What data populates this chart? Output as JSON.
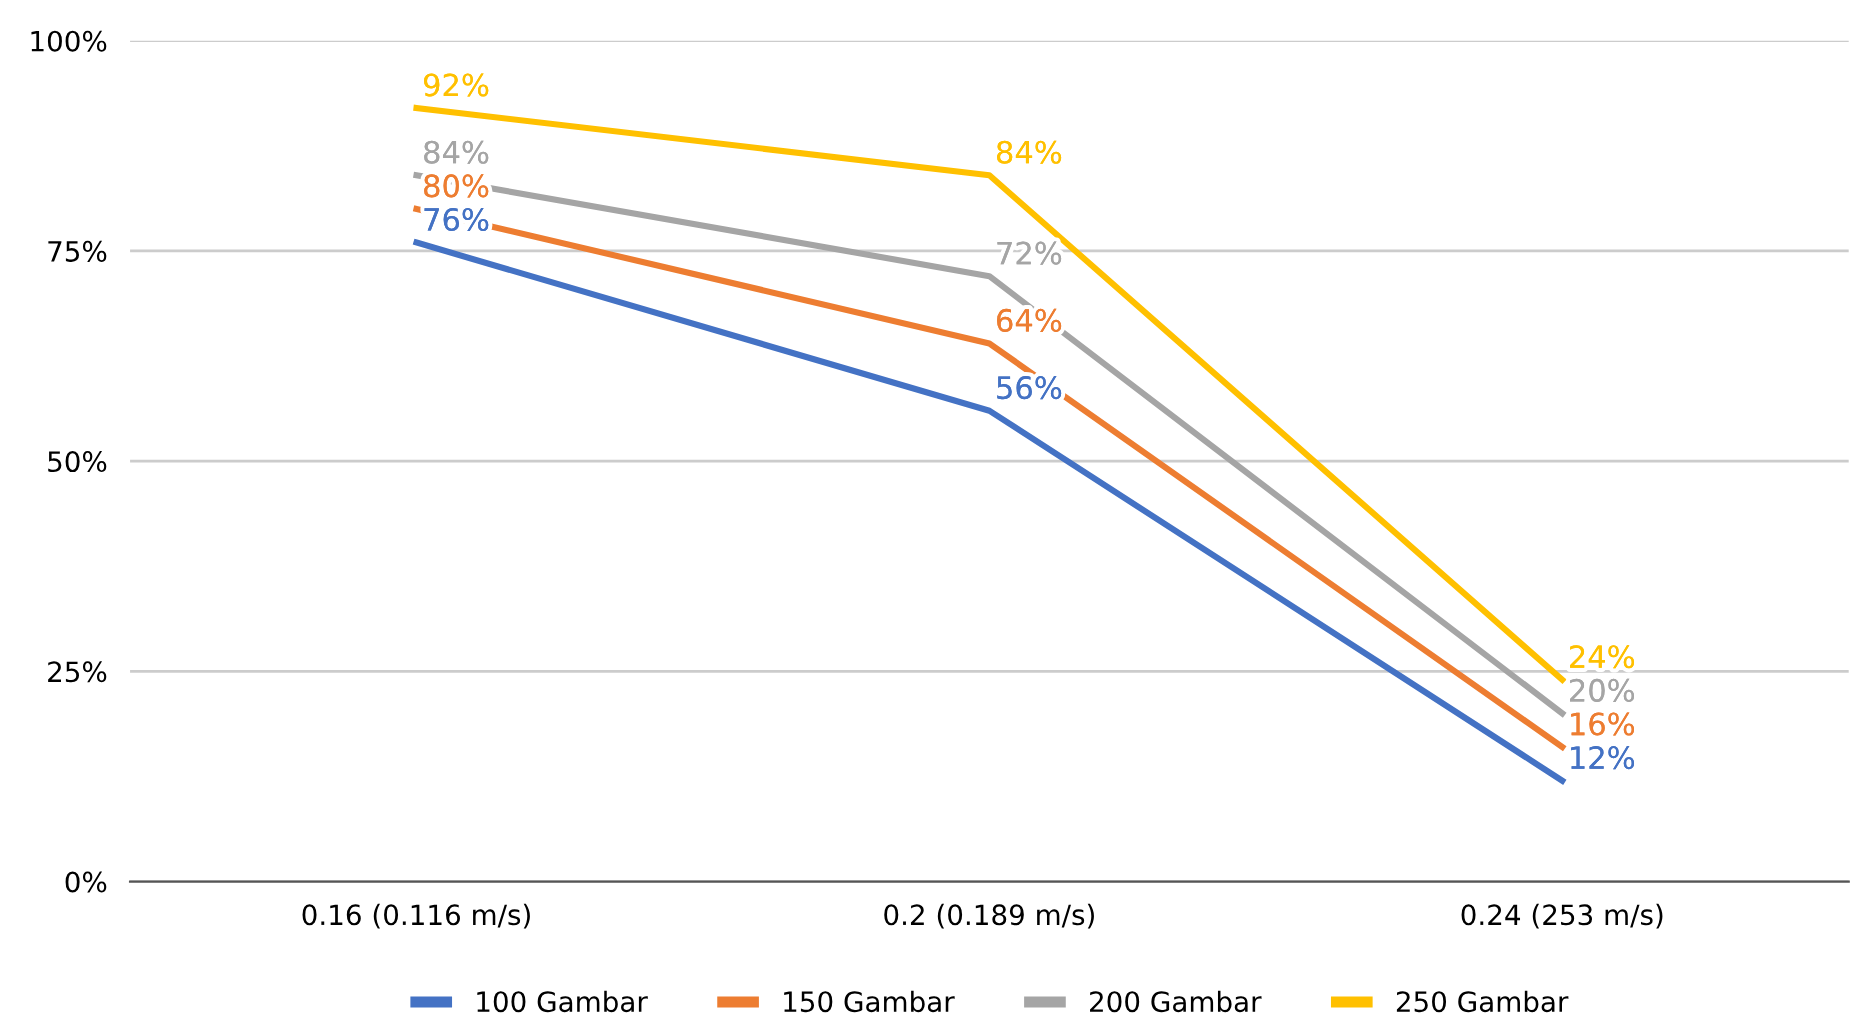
{
  "chart_data": {
    "type": "line",
    "categories": [
      "0.16 (0.116 m/s)",
      "0.2 (0.189 m/s)",
      "0.24 (253 m/s)"
    ],
    "series": [
      {
        "name": "100 Gambar",
        "color": "#4472c4",
        "values": [
          76,
          56,
          12
        ],
        "value_labels": [
          "76%",
          "56%",
          "12%"
        ]
      },
      {
        "name": "150 Gambar",
        "color": "#ed7d31",
        "values": [
          80,
          64,
          16
        ],
        "value_labels": [
          "80%",
          "64%",
          "16%"
        ]
      },
      {
        "name": "200 Gambar",
        "color": "#a5a5a5",
        "values": [
          84,
          72,
          20
        ],
        "value_labels": [
          "84%",
          "72%",
          "20%"
        ]
      },
      {
        "name": "250 Gambar",
        "color": "#ffc000",
        "values": [
          92,
          84,
          24
        ],
        "value_labels": [
          "92%",
          "84%",
          "24%"
        ]
      }
    ],
    "ylim": [
      0,
      100
    ],
    "yticks": [
      {
        "value": 0,
        "label": "0%"
      },
      {
        "value": 25,
        "label": "25%"
      },
      {
        "value": 50,
        "label": "50%"
      },
      {
        "value": 75,
        "label": "75%"
      },
      {
        "value": 100,
        "label": "100%"
      }
    ],
    "grid": "y",
    "legend": "bottom",
    "marker": "none",
    "line_style": "solid"
  }
}
